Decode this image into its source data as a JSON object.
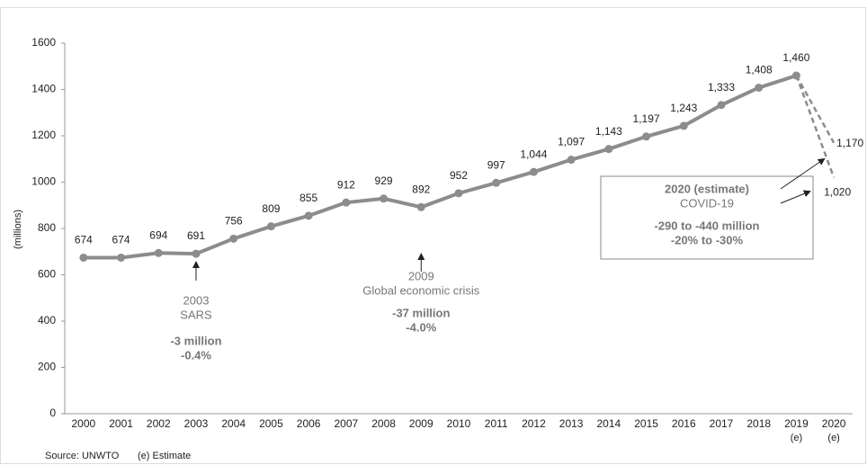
{
  "chart_data": {
    "type": "line",
    "y_label": "(millions)",
    "categories": [
      "2000",
      "2001",
      "2002",
      "2003",
      "2004",
      "2005",
      "2006",
      "2007",
      "2008",
      "2009",
      "2010",
      "2011",
      "2012",
      "2013",
      "2014",
      "2015",
      "2016",
      "2017",
      "2018",
      "2019",
      "2020"
    ],
    "estimate_mark": "(e)",
    "series": [
      {
        "color": "#8c8c8c",
        "dashed": false,
        "values": [
          674,
          674,
          694,
          691,
          756,
          809,
          855,
          912,
          929,
          892,
          952,
          997,
          1044,
          1097,
          1143,
          1197,
          1243,
          1333,
          1408,
          1460,
          null
        ],
        "value_labels": [
          "674",
          "674",
          "694",
          "691",
          "756",
          "809",
          "855",
          "912",
          "929",
          "892",
          "952",
          "997",
          "1,044",
          "1,097",
          "1,143",
          "1,197",
          "1,243",
          "1,333",
          "1,408",
          "1,460",
          null
        ]
      },
      {
        "color": "#8c8c8c",
        "dashed": true,
        "values": [
          null,
          null,
          null,
          null,
          null,
          null,
          null,
          null,
          null,
          null,
          null,
          null,
          null,
          null,
          null,
          null,
          null,
          null,
          null,
          1460,
          1170
        ],
        "value_labels": [
          null,
          null,
          null,
          null,
          null,
          null,
          null,
          null,
          null,
          null,
          null,
          null,
          null,
          null,
          null,
          null,
          null,
          null,
          null,
          null,
          "1,170"
        ]
      },
      {
        "color": "#8c8c8c",
        "dashed": true,
        "values": [
          null,
          null,
          null,
          null,
          null,
          null,
          null,
          null,
          null,
          null,
          null,
          null,
          null,
          null,
          null,
          null,
          null,
          null,
          null,
          1460,
          1020
        ],
        "value_labels": [
          null,
          null,
          null,
          null,
          null,
          null,
          null,
          null,
          null,
          null,
          null,
          null,
          null,
          null,
          null,
          null,
          null,
          null,
          null,
          null,
          "1,020"
        ]
      }
    ],
    "ylim": [
      0,
      1600
    ],
    "yticks": [
      0,
      200,
      400,
      600,
      800,
      1000,
      1200,
      1400,
      1600
    ],
    "annotations": [
      {
        "year": "2003",
        "event": "SARS",
        "change": "-3 million",
        "percent": "-0.4%"
      },
      {
        "year": "2009",
        "event": "Global economic crisis",
        "change": "-37 million",
        "percent": "-4.0%"
      }
    ],
    "estimate_box": {
      "title": "2020 (estimate)",
      "event": "COVID-19",
      "change": "-290 to -440 million",
      "percent": "-20% to -30%"
    },
    "source": "Source: UNWTO",
    "legend_note": "(e) Estimate"
  }
}
